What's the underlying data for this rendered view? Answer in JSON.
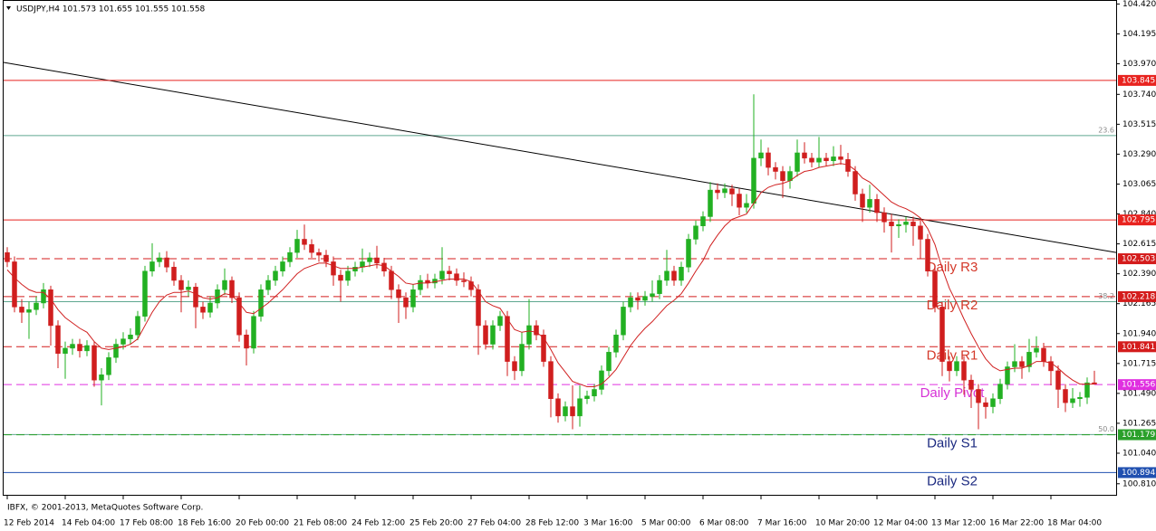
{
  "chart_data": {
    "type": "candlestick",
    "title": "USDJPY,H4  101.573 101.655 101.555 101.558",
    "footer": "IBFX, © 2001-2013, MetaQuotes Software Corp.",
    "up_color": "#22b022",
    "down_color": "#d01e1e",
    "ylim": [
      100.72,
      104.45
    ],
    "yticks": [
      {
        "value": 104.42,
        "label": "104.420"
      },
      104.195,
      {
        "value": 103.97,
        "label": "103.970"
      },
      {
        "value": 103.74,
        "label": "103.740"
      },
      103.515,
      {
        "value": 103.29,
        "label": "103.290"
      },
      103.065,
      {
        "value": 102.84,
        "label": "102.840"
      },
      102.615,
      {
        "value": 102.39,
        "label": "102.390"
      },
      102.165,
      {
        "value": 101.94,
        "label": "101.940"
      },
      101.715,
      {
        "value": 101.49,
        "label": "101.490"
      },
      101.265,
      {
        "value": 101.04,
        "label": "101.040"
      },
      {
        "value": 100.81,
        "label": "100.810"
      }
    ],
    "categories": [
      "12 Feb 2014",
      null,
      null,
      null,
      null,
      null,
      null,
      null,
      "14 Feb 04:00",
      null,
      null,
      null,
      null,
      null,
      null,
      null,
      "17 Feb 08:00",
      null,
      null,
      null,
      null,
      null,
      null,
      null,
      "18 Feb 16:00",
      null,
      null,
      null,
      null,
      null,
      null,
      null,
      "20 Feb 00:00",
      null,
      null,
      null,
      null,
      null,
      null,
      null,
      "21 Feb 08:00",
      null,
      null,
      null,
      null,
      null,
      null,
      null,
      "24 Feb 12:00",
      null,
      null,
      null,
      null,
      null,
      null,
      null,
      "25 Feb 20:00",
      null,
      null,
      null,
      null,
      null,
      null,
      null,
      "27 Feb 04:00",
      null,
      null,
      null,
      null,
      null,
      null,
      null,
      "28 Feb 12:00",
      null,
      null,
      null,
      null,
      null,
      null,
      null,
      "3 Mar 16:00",
      null,
      null,
      null,
      null,
      null,
      null,
      null,
      "5 Mar 00:00",
      null,
      null,
      null,
      null,
      null,
      null,
      null,
      "6 Mar 08:00",
      null,
      null,
      null,
      null,
      null,
      null,
      null,
      "7 Mar 16:00",
      null,
      null,
      null,
      null,
      null,
      null,
      null,
      "10 Mar 20:00",
      null,
      null,
      null,
      null,
      null,
      null,
      null,
      "12 Mar 04:00",
      null,
      null,
      null,
      null,
      null,
      null,
      null,
      "13 Mar 12:00",
      null,
      null,
      null,
      null,
      null,
      null,
      null,
      "16 Mar 22:00",
      null,
      null,
      null,
      null,
      null,
      null,
      null,
      "18 Mar 04:00",
      null,
      null,
      null,
      null,
      null,
      null
    ],
    "open": [
      102.55,
      102.48,
      102.14,
      102.1,
      102.12,
      102.17,
      102.27,
      102.0,
      101.79,
      101.83,
      101.86,
      101.81,
      101.85,
      101.59,
      101.63,
      101.76,
      101.86,
      101.9,
      101.93,
      102.07,
      102.41,
      102.48,
      102.51,
      102.44,
      102.34,
      102.27,
      102.29,
      102.14,
      102.1,
      102.17,
      102.27,
      102.34,
      102.21,
      101.93,
      101.83,
      102.07,
      102.27,
      102.34,
      102.41,
      102.48,
      102.55,
      102.65,
      102.61,
      102.55,
      102.53,
      102.48,
      102.38,
      102.34,
      102.41,
      102.44,
      102.48,
      102.51,
      102.47,
      102.41,
      102.27,
      102.21,
      102.14,
      102.27,
      102.34,
      102.32,
      102.35,
      102.41,
      102.39,
      102.34,
      102.33,
      102.27,
      102.0,
      101.86,
      102.0,
      102.07,
      101.73,
      101.66,
      101.86,
      102.0,
      101.93,
      101.73,
      101.45,
      101.32,
      101.39,
      101.32,
      101.45,
      101.47,
      101.52,
      101.66,
      101.8,
      101.93,
      102.14,
      102.21,
      102.19,
      102.22,
      102.24,
      102.34,
      102.41,
      102.34,
      102.44,
      102.65,
      102.75,
      102.82,
      103.02,
      103.0,
      103.03,
      102.99,
      102.89,
      102.92,
      103.26,
      103.3,
      103.19,
      103.16,
      103.09,
      103.16,
      103.3,
      103.26,
      103.23,
      103.26,
      103.24,
      103.27,
      103.25,
      103.16,
      102.99,
      102.89,
      102.95,
      102.85,
      102.78,
      102.75,
      102.76,
      102.78,
      102.75,
      102.65,
      102.41,
      102.14,
      101.73,
      101.66,
      101.73,
      101.59,
      101.52,
      101.42,
      101.39,
      101.45,
      101.56,
      101.69,
      101.73,
      101.69,
      101.8,
      101.83,
      101.73,
      101.66,
      101.52,
      101.42,
      101.45,
      101.46,
      101.57
    ],
    "high": [
      102.59,
      102.52,
      102.2,
      102.18,
      102.22,
      102.32,
      102.3,
      102.04,
      101.88,
      101.9,
      101.9,
      101.89,
      101.88,
      101.68,
      101.8,
      101.9,
      101.95,
      101.98,
      102.11,
      102.45,
      102.62,
      102.55,
      102.56,
      102.48,
      102.38,
      102.34,
      102.32,
      102.18,
      102.22,
      102.31,
      102.43,
      102.37,
      102.25,
      101.97,
      102.11,
      102.31,
      102.38,
      102.45,
      102.52,
      102.59,
      102.72,
      102.76,
      102.65,
      102.58,
      102.57,
      102.52,
      102.42,
      102.45,
      102.48,
      102.58,
      102.55,
      102.6,
      102.51,
      102.45,
      102.31,
      102.25,
      102.31,
      102.38,
      102.39,
      102.39,
      102.59,
      102.45,
      102.43,
      102.4,
      102.37,
      102.31,
      102.04,
      102.04,
      102.11,
      102.11,
      101.77,
      101.95,
      102.2,
      102.04,
      101.97,
      101.77,
      101.49,
      101.43,
      101.55,
      101.55,
      101.51,
      101.56,
      101.7,
      101.84,
      101.97,
      102.18,
      102.25,
      102.25,
      102.26,
      102.34,
      102.38,
      102.57,
      102.45,
      102.48,
      102.69,
      102.79,
      102.86,
      103.08,
      103.07,
      103.07,
      103.06,
      103.03,
      102.99,
      103.74,
      103.4,
      103.34,
      103.23,
      103.2,
      103.2,
      103.4,
      103.38,
      103.3,
      103.42,
      103.3,
      103.35,
      103.36,
      103.3,
      103.2,
      103.03,
      103.06,
      102.99,
      102.89,
      102.84,
      102.8,
      102.82,
      102.82,
      102.79,
      102.69,
      102.45,
      102.18,
      101.77,
      101.77,
      101.77,
      101.63,
      101.56,
      101.46,
      101.49,
      101.6,
      101.73,
      101.86,
      101.77,
      101.9,
      101.92,
      101.87,
      101.77,
      101.7,
      101.56,
      101.53,
      101.5,
      101.61,
      101.66
    ],
    "low": [
      102.44,
      102.1,
      102.02,
      101.9,
      102.08,
      102.13,
      101.85,
      101.68,
      101.6,
      101.78,
      101.76,
      101.77,
      101.54,
      101.4,
      101.59,
      101.72,
      101.82,
      101.86,
      101.89,
      102.03,
      102.37,
      102.44,
      102.4,
      102.3,
      102.1,
      102.22,
      101.98,
      102.05,
      102.06,
      102.13,
      102.23,
      102.17,
      101.88,
      101.7,
      101.79,
      102.03,
      102.23,
      102.3,
      102.37,
      102.44,
      102.51,
      102.57,
      102.51,
      102.48,
      102.44,
      102.3,
      102.18,
      102.3,
      102.37,
      102.4,
      102.44,
      102.43,
      102.37,
      102.2,
      102.02,
      102.05,
      102.1,
      102.23,
      102.28,
      102.28,
      102.31,
      102.34,
      102.3,
      102.29,
      102.22,
      101.78,
      101.82,
      101.82,
      101.96,
      101.62,
      101.59,
      101.62,
      101.82,
      101.89,
      101.69,
      101.31,
      101.27,
      101.28,
      101.22,
      101.24,
      101.41,
      101.43,
      101.48,
      101.62,
      101.76,
      101.89,
      102.1,
      102.12,
      102.15,
      102.18,
      102.2,
      102.3,
      102.3,
      102.3,
      102.4,
      102.61,
      102.71,
      102.78,
      102.95,
      102.96,
      102.9,
      102.83,
      102.85,
      102.88,
      103.2,
      103.13,
      103.1,
      102.96,
      103.03,
      103.12,
      103.22,
      103.19,
      103.19,
      103.2,
      103.2,
      103.21,
      103.12,
      102.94,
      102.78,
      102.85,
      102.78,
      102.7,
      102.55,
      102.66,
      102.7,
      102.6,
      102.5,
      102.37,
      102.1,
      101.62,
      101.58,
      101.62,
      101.48,
      101.38,
      101.22,
      101.3,
      101.34,
      101.41,
      101.52,
      101.65,
      101.6,
      101.65,
      101.76,
      101.69,
      101.55,
      101.38,
      101.35,
      101.38,
      101.39,
      101.41,
      101.56
    ],
    "close": [
      102.48,
      102.14,
      102.1,
      102.12,
      102.17,
      102.27,
      102.0,
      101.79,
      101.83,
      101.86,
      101.81,
      101.85,
      101.59,
      101.63,
      101.76,
      101.86,
      101.9,
      101.93,
      102.07,
      102.41,
      102.48,
      102.51,
      102.44,
      102.34,
      102.27,
      102.29,
      102.14,
      102.1,
      102.17,
      102.27,
      102.34,
      102.21,
      101.93,
      101.83,
      102.07,
      102.27,
      102.34,
      102.41,
      102.48,
      102.55,
      102.65,
      102.61,
      102.55,
      102.53,
      102.48,
      102.38,
      102.34,
      102.41,
      102.44,
      102.48,
      102.51,
      102.47,
      102.41,
      102.27,
      102.21,
      102.14,
      102.27,
      102.34,
      102.32,
      102.35,
      102.41,
      102.39,
      102.34,
      102.33,
      102.27,
      102.0,
      101.86,
      102.0,
      102.07,
      101.73,
      101.66,
      101.86,
      102.0,
      101.93,
      101.73,
      101.45,
      101.32,
      101.39,
      101.32,
      101.45,
      101.47,
      101.52,
      101.66,
      101.8,
      101.93,
      102.14,
      102.21,
      102.19,
      102.22,
      102.24,
      102.34,
      102.41,
      102.34,
      102.44,
      102.65,
      102.75,
      102.82,
      103.02,
      103.0,
      103.03,
      102.99,
      102.89,
      102.92,
      103.26,
      103.3,
      103.19,
      103.16,
      103.09,
      103.16,
      103.3,
      103.26,
      103.23,
      103.26,
      103.24,
      103.27,
      103.25,
      103.16,
      102.99,
      102.89,
      102.95,
      102.85,
      102.78,
      102.75,
      102.76,
      102.78,
      102.75,
      102.65,
      102.41,
      102.14,
      101.73,
      101.66,
      101.73,
      101.59,
      101.52,
      101.42,
      101.39,
      101.45,
      101.56,
      101.69,
      101.73,
      101.69,
      101.8,
      101.83,
      101.73,
      101.66,
      101.52,
      101.42,
      101.45,
      101.46,
      101.57,
      101.56
    ],
    "ma": {
      "color": "#d02020",
      "values": [
        102.42,
        102.36,
        102.31,
        102.27,
        102.25,
        102.25,
        102.2,
        102.12,
        102.06,
        102.02,
        101.98,
        101.95,
        101.88,
        101.83,
        101.82,
        101.83,
        101.84,
        101.86,
        101.9,
        102.0,
        102.1,
        102.18,
        102.23,
        102.25,
        102.25,
        102.26,
        102.24,
        102.21,
        102.2,
        102.21,
        102.24,
        102.23,
        102.17,
        102.1,
        102.09,
        102.13,
        102.17,
        102.22,
        102.27,
        102.33,
        102.39,
        102.43,
        102.45,
        102.47,
        102.47,
        102.45,
        102.43,
        102.43,
        102.43,
        102.44,
        102.45,
        102.46,
        102.45,
        102.41,
        102.37,
        102.32,
        102.31,
        102.32,
        102.32,
        102.33,
        102.34,
        102.35,
        102.35,
        102.35,
        102.33,
        102.26,
        102.18,
        102.15,
        102.13,
        102.05,
        101.97,
        101.95,
        101.96,
        101.95,
        101.91,
        101.82,
        101.72,
        101.65,
        101.58,
        101.56,
        101.54,
        101.54,
        101.56,
        101.61,
        101.67,
        101.76,
        101.85,
        101.92,
        101.98,
        102.03,
        102.09,
        102.15,
        102.19,
        102.24,
        102.32,
        102.41,
        102.49,
        102.6,
        102.68,
        102.75,
        102.8,
        102.82,
        102.84,
        102.92,
        103.0,
        103.04,
        103.06,
        103.07,
        103.09,
        103.13,
        103.16,
        103.17,
        103.19,
        103.2,
        103.21,
        103.22,
        103.21,
        103.17,
        103.11,
        103.08,
        103.03,
        102.98,
        102.93,
        102.9,
        102.88,
        102.85,
        102.81,
        102.73,
        102.61,
        102.43,
        102.28,
        102.17,
        102.05,
        101.94,
        101.84,
        101.75,
        101.69,
        101.66,
        101.67,
        101.68,
        101.68,
        101.7,
        101.73,
        101.73,
        101.72,
        101.68,
        101.63,
        101.59,
        101.56,
        101.56,
        101.56
      ]
    },
    "trendline": {
      "color": "#000000",
      "values": [
        103.98,
        102.55
      ]
    },
    "fib_levels": [
      {
        "label": "23.6",
        "value": 103.43,
        "color": "#5fa890"
      },
      {
        "label": "38.2",
        "value": 102.18,
        "color": "#5fa890"
      },
      {
        "label": "50.0",
        "value": 101.18,
        "color": "#5fa890"
      }
    ],
    "levels": [
      {
        "value": 103.845,
        "color": "#e8231f",
        "style": "solid"
      },
      {
        "value": 102.795,
        "color": "#e8231f",
        "style": "solid"
      },
      {
        "value": 102.503,
        "name": "Daily R3",
        "color": "#d41c1c",
        "name_color": "#d4392a",
        "style": "dashed"
      },
      {
        "value": 102.218,
        "name": "Daily R2",
        "color": "#d41c1c",
        "name_color": "#d4392a",
        "style": "dashed"
      },
      {
        "value": 101.841,
        "name": "Daily R1",
        "color": "#d41c1c",
        "name_color": "#d4392a",
        "style": "dashed"
      },
      {
        "value": 101.556,
        "name": "Daily Pivot",
        "color": "#e030e0",
        "name_color": "#d632d6",
        "style": "dashed"
      },
      {
        "value": 101.179,
        "name": "Daily S1",
        "color": "#2aa02a",
        "name_color": "#1c2a80",
        "style": "dashed"
      },
      {
        "value": 100.894,
        "name": "Daily S2",
        "color": "#2050b0",
        "name_color": "#1c2a80",
        "style": "solid"
      }
    ]
  }
}
